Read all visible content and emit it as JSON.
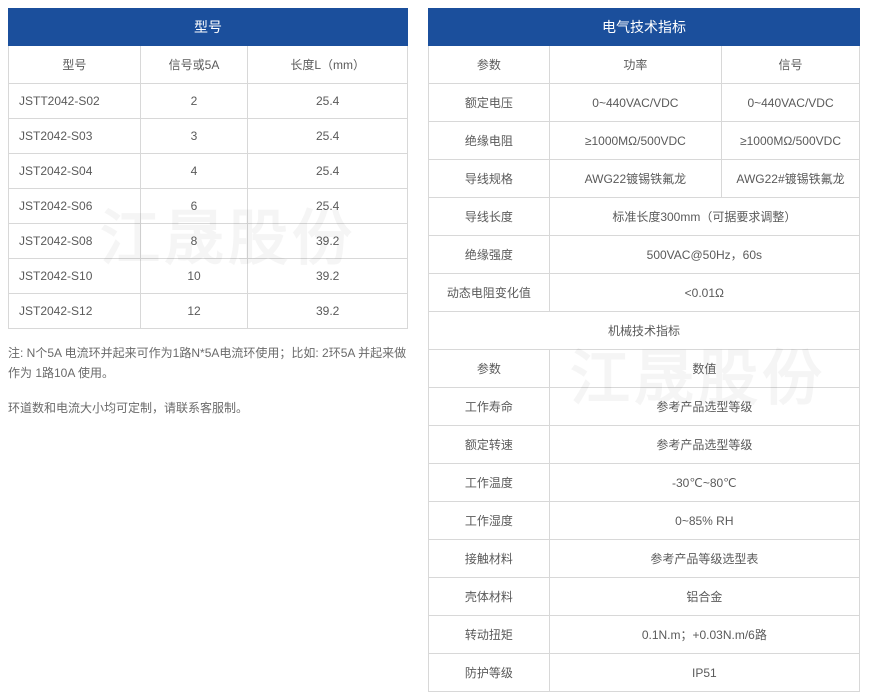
{
  "left": {
    "banner": "型号",
    "headers": [
      "型号",
      "信号或5A",
      "长度L（mm）"
    ],
    "rows": [
      [
        "JSTT2042-S02",
        "2",
        "25.4"
      ],
      [
        "JST2042-S03",
        "3",
        "25.4"
      ],
      [
        "JST2042-S04",
        "4",
        "25.4"
      ],
      [
        "JST2042-S06",
        "6",
        "25.4"
      ],
      [
        "JST2042-S08",
        "8",
        "39.2"
      ],
      [
        "JST2042-S10",
        "10",
        "39.2"
      ],
      [
        "JST2042-S12",
        "12",
        "39.2"
      ]
    ],
    "note1": "注: N个5A 电流环并起来可作为1路N*5A电流环使用；比如: 2环5A 并起来做作为 1路10A 使用。",
    "note2": "环道数和电流大小均可定制，请联系客服制。"
  },
  "right": {
    "banner": "电气技术指标",
    "headers": [
      "参数",
      "功率",
      "信号"
    ],
    "elec_rows": [
      {
        "p": "额定电压",
        "a": "0~440VAC/VDC",
        "b": "0~440VAC/VDC"
      },
      {
        "p": "绝缘电阻",
        "a": "≥1000MΩ/500VDC",
        "b": "≥1000MΩ/500VDC"
      },
      {
        "p": "导线规格",
        "a": "AWG22镀锡铁氟龙",
        "b": "AWG22#镀锡铁氟龙"
      },
      {
        "p": "导线长度",
        "a": "标准长度300mm（可据要求调整）",
        "span": true
      },
      {
        "p": "绝缘强度",
        "a": "500VAC@50Hz，60s",
        "span": true
      },
      {
        "p": "动态电阻变化值",
        "a": "<0.01Ω",
        "span": true
      }
    ],
    "mech_banner": "机械技术指标",
    "mech_headers": [
      "参数",
      "数值"
    ],
    "mech_rows": [
      [
        "工作寿命",
        "参考产品选型等级"
      ],
      [
        "额定转速",
        "参考产品选型等级"
      ],
      [
        "工作温度",
        "-30℃~80℃"
      ],
      [
        "工作湿度",
        "0~85% RH"
      ],
      [
        "接触材料",
        "参考产品等级选型表"
      ],
      [
        "壳体材料",
        "铝合金"
      ],
      [
        "转动扭矩",
        "0.1N.m；+0.03N.m/6路"
      ],
      [
        "防护等级",
        "IP51"
      ]
    ]
  },
  "style": {
    "banner_bg": "#1b4f9c",
    "banner_fg": "#ffffff",
    "border": "#d8d8d8",
    "text": "#5a5a5a",
    "left_col_widths": [
      "33%",
      "27%",
      "40%"
    ],
    "right_col_widths": [
      "28%",
      "40%",
      "32%"
    ]
  },
  "watermark": "江晟股份"
}
